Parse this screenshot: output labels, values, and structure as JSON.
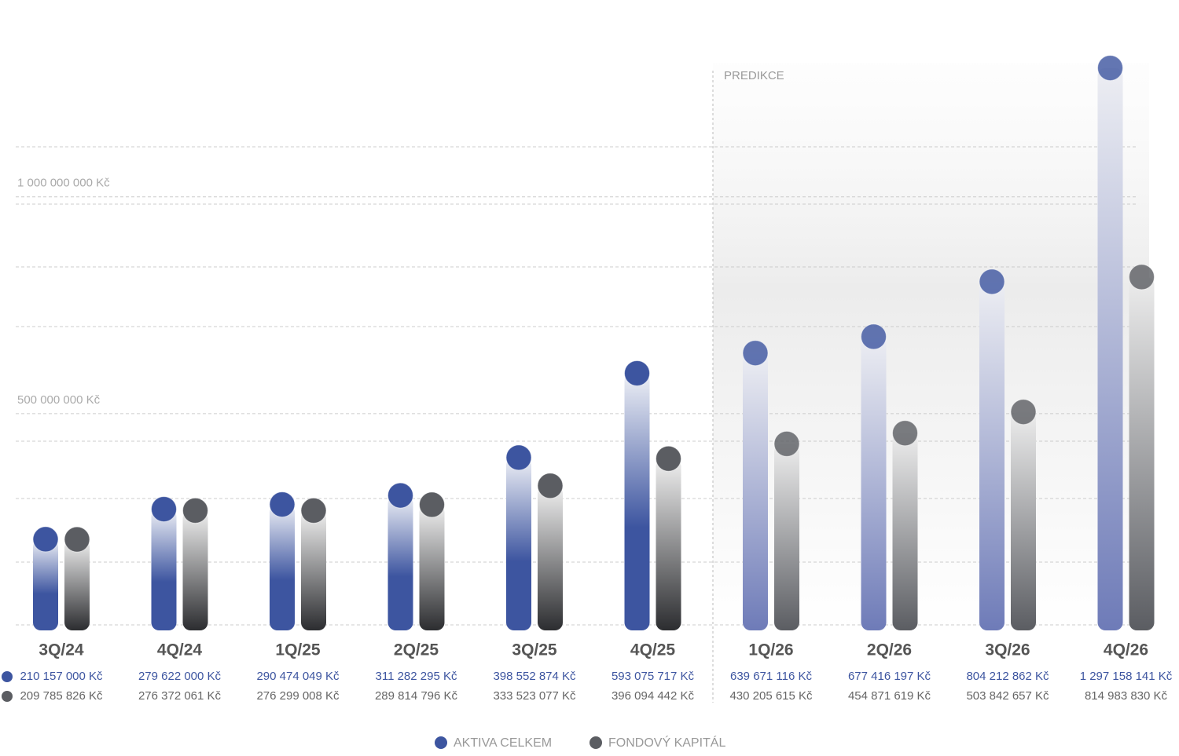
{
  "chart_data": {
    "type": "bar",
    "categories": [
      "3Q/24",
      "4Q/24",
      "1Q/25",
      "2Q/25",
      "3Q/25",
      "4Q/25",
      "1Q/26",
      "2Q/26",
      "3Q/26",
      "4Q/26"
    ],
    "series": [
      {
        "name": "AKTIVA CELKEM",
        "color": "#3d55a0",
        "values": [
          210157000,
          279622000,
          290474049,
          311282295,
          398552874,
          593075717,
          639671116,
          677416197,
          804212862,
          1297158141
        ],
        "value_labels": [
          "210 157 000 Kč",
          "279 622 000 Kč",
          "290 474 049 Kč",
          "311 282 295 Kč",
          "398 552 874 Kč",
          "593 075 717 Kč",
          "639 671 116 Kč",
          "677 416 197 Kč",
          "804 212 862 Kč",
          "1 297 158 141 Kč"
        ]
      },
      {
        "name": "FONDOVÝ KAPITÁL",
        "color": "#5b5d62",
        "values": [
          209785826,
          276372061,
          276299008,
          289814796,
          333523077,
          396094442,
          430205615,
          454871619,
          503842657,
          814983830
        ],
        "value_labels": [
          "209 785 826 Kč",
          "276 372 061 Kč",
          "276 299 008 Kč",
          "289 814 796 Kč",
          "333 523 077 Kč",
          "396 094 442 Kč",
          "430 205 615 Kč",
          "454 871 619 Kč",
          "503 842 657 Kč",
          "814 983 830 Kč"
        ]
      }
    ],
    "ylim": [
      0,
      1300000000
    ],
    "yticks": [
      {
        "value": 500000000,
        "label": "500 000 000 Kč"
      },
      {
        "value": 1000000000,
        "label": "1 000 000 000 Kč"
      }
    ],
    "grid": true,
    "annotation": {
      "text": "PREDIKCE",
      "from": "1Q/26"
    }
  }
}
